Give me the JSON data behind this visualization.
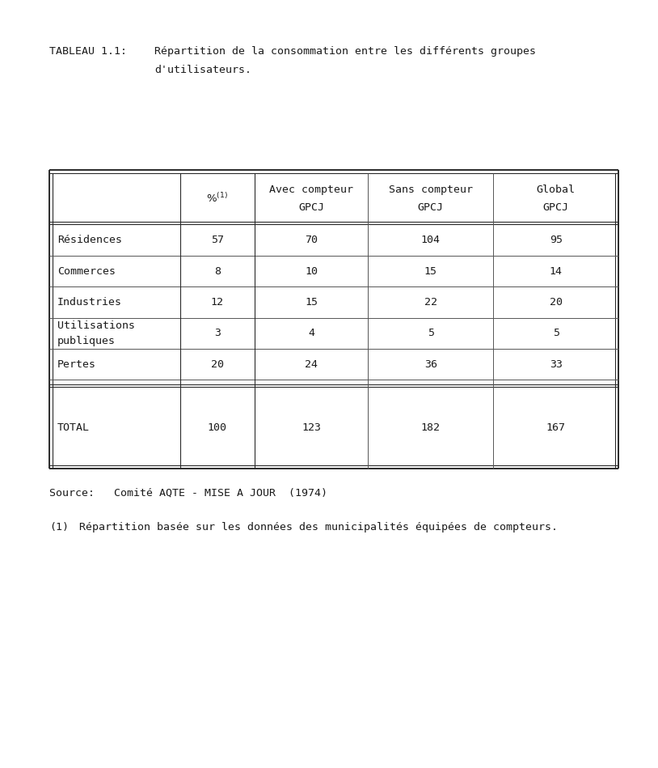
{
  "title_label": "TABLEAU 1.1:",
  "title_text_line1": "Répartition de la consommation entre les différents groupes",
  "title_text_line2": "d'utilisateurs.",
  "col_headers_row1": [
    "",
    "%⁻¹⁾",
    "Avec compteur",
    "Sans compteur",
    "Global"
  ],
  "col_headers_row2": [
    "",
    "",
    "GPCJ",
    "GPCJ",
    "GPCJ"
  ],
  "col_headers_pct": "%⁻¹⁾",
  "row_labels": [
    "Résidences",
    "Commerces",
    "Industries",
    "Utilisations\npubliques",
    "Pertes",
    "TOTAL"
  ],
  "table_data": [
    [
      "57",
      "70",
      "104",
      "95"
    ],
    [
      "8",
      "10",
      "15",
      "14"
    ],
    [
      "12",
      "15",
      "22",
      "20"
    ],
    [
      "3",
      "4",
      "5",
      "5"
    ],
    [
      "20",
      "24",
      "36",
      "33"
    ],
    [
      "100",
      "123",
      "182",
      "167"
    ]
  ],
  "source_text": "Source:   Comité AQTE - MISE A JOUR  (1974)",
  "footnote_num": "(1)",
  "footnote_text": "Répartition basée sur les données des municipalités équipées de compteurs.",
  "bg_color": "#ffffff",
  "text_color": "#1a1a1a"
}
